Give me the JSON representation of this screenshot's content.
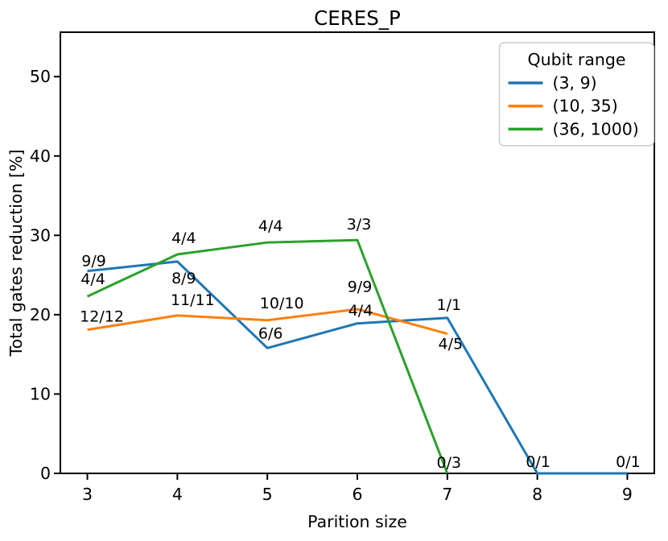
{
  "figure": {
    "background": "#ffffff",
    "text_color": "#000000",
    "axis_color": "#000000",
    "legend_border_color": "#cccccc"
  },
  "chart_data": {
    "type": "line",
    "title": "CERES_P",
    "xlabel": "Parition size",
    "ylabel": "Total gates reduction [%]",
    "xlim": [
      2.7,
      9.3
    ],
    "ylim": [
      0,
      55.6
    ],
    "xticks": [
      3,
      4,
      5,
      6,
      7,
      8,
      9
    ],
    "yticks": [
      0,
      10,
      20,
      30,
      40,
      50
    ],
    "grid": false,
    "legend": {
      "title": "Qubit range",
      "position": "upper right"
    },
    "series": [
      {
        "name": "(3, 9)",
        "color": "#1f77b4",
        "x": [
          3,
          4,
          5,
          6,
          7,
          8,
          9
        ],
        "y": [
          25.5,
          26.7,
          15.8,
          18.9,
          19.6,
          0,
          0
        ],
        "annotations": [
          {
            "text": "9/9",
            "dx": 8,
            "dy": -6
          },
          {
            "text": "8/9",
            "dx": 8,
            "dy": 27
          },
          {
            "text": "6/6",
            "dx": 4,
            "dy": -12
          },
          {
            "text": "9/9",
            "dx": 3,
            "dy": -39
          },
          {
            "text": "1/1",
            "dx": 2,
            "dy": -10
          },
          {
            "text": "0/1",
            "dx": 1,
            "dy": -8
          },
          {
            "text": "0/1",
            "dx": 1,
            "dy": -8
          }
        ]
      },
      {
        "name": "(10, 35)",
        "color": "#ff7f0e",
        "x": [
          3,
          4,
          5,
          6,
          7
        ],
        "y": [
          18.1,
          19.9,
          19.3,
          20.7,
          17.6
        ],
        "annotations": [
          {
            "text": "12/12",
            "dx": 18,
            "dy": -10
          },
          {
            "text": "11/11",
            "dx": 19,
            "dy": -13
          },
          {
            "text": "10/10",
            "dx": 18,
            "dy": -15
          },
          {
            "text": "4/4",
            "dx": 4,
            "dy": 8
          },
          {
            "text": "4/5",
            "dx": 4,
            "dy": 19
          }
        ]
      },
      {
        "name": "(36, 1000)",
        "color": "#2ca02c",
        "x": [
          3,
          4,
          5,
          6,
          7
        ],
        "y": [
          22.3,
          27.6,
          29.1,
          29.4,
          0
        ],
        "annotations": [
          {
            "text": "4/4",
            "dx": 7,
            "dy": -15
          },
          {
            "text": "4/4",
            "dx": 8,
            "dy": -14
          },
          {
            "text": "4/4",
            "dx": 4,
            "dy": -14
          },
          {
            "text": "3/3",
            "dx": 2,
            "dy": -13
          },
          {
            "text": "0/3",
            "dx": 2,
            "dy": -7
          }
        ]
      }
    ]
  }
}
